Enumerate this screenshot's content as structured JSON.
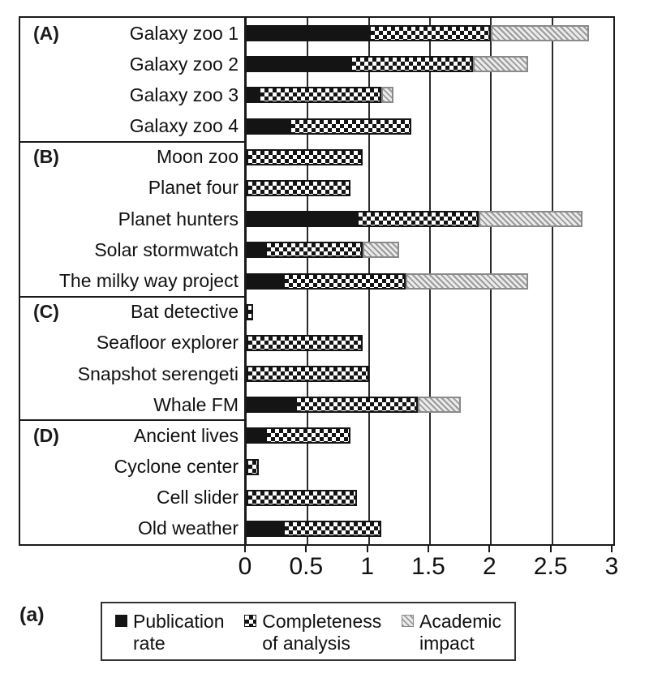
{
  "figure_label": "(a)",
  "colors": {
    "ink": "#1a1a1a",
    "solid_fill": "#141414",
    "checker_dark": "#141414",
    "checker_light": "#ffffff",
    "hatch_line": "#9a9a9a",
    "hatch_bg": "#ebebeb"
  },
  "legend": {
    "items": [
      {
        "name": "Publication rate",
        "pattern": "solid",
        "lines": [
          "Publication",
          "rate"
        ]
      },
      {
        "name": "Completeness of analysis",
        "pattern": "checker",
        "lines": [
          "Completeness",
          "of analysis"
        ]
      },
      {
        "name": "Academic impact",
        "pattern": "hatch",
        "lines": [
          "Academic",
          "impact"
        ]
      }
    ]
  },
  "chart_data": {
    "type": "bar",
    "orientation": "horizontal-stacked",
    "title": "",
    "xlabel": "",
    "ylabel": "",
    "xlim": [
      0,
      3
    ],
    "xticks": [
      0,
      0.5,
      1,
      1.5,
      2,
      2.5,
      3
    ],
    "xtick_labels": [
      "0",
      "0.5",
      "1",
      "1.5",
      "2",
      "2.5",
      "3"
    ],
    "grid": "vertical",
    "legend_position": "bottom",
    "series_names": [
      "Publication rate",
      "Completeness of analysis",
      "Academic impact"
    ],
    "series_patterns": [
      "solid",
      "checker",
      "hatch"
    ],
    "groups": [
      {
        "label": "(A)",
        "rows": [
          {
            "name": "Galaxy zoo 1",
            "values": [
              1.0,
              1.0,
              0.8
            ]
          },
          {
            "name": "Galaxy zoo 2",
            "values": [
              0.85,
              1.0,
              0.45
            ]
          },
          {
            "name": "Galaxy zoo 3",
            "values": [
              0.1,
              1.0,
              0.1
            ]
          },
          {
            "name": "Galaxy zoo 4",
            "values": [
              0.35,
              1.0,
              0
            ]
          }
        ]
      },
      {
        "label": "(B)",
        "rows": [
          {
            "name": "Moon zoo",
            "values": [
              0,
              0.95,
              0
            ]
          },
          {
            "name": "Planet four",
            "values": [
              0,
              0.85,
              0
            ]
          },
          {
            "name": "Planet hunters",
            "values": [
              0.9,
              1.0,
              0.85
            ]
          },
          {
            "name": "Solar stormwatch",
            "values": [
              0.15,
              0.8,
              0.3
            ]
          },
          {
            "name": "The milky way project",
            "values": [
              0.3,
              1.0,
              1.0
            ]
          }
        ]
      },
      {
        "label": "(C)",
        "rows": [
          {
            "name": "Bat detective",
            "values": [
              0,
              0.05,
              0
            ]
          },
          {
            "name": "Seafloor explorer",
            "values": [
              0,
              0.95,
              0
            ]
          },
          {
            "name": "Snapshot serengeti",
            "values": [
              0,
              1.0,
              0
            ]
          },
          {
            "name": "Whale FM",
            "values": [
              0.4,
              1.0,
              0.35
            ]
          }
        ]
      },
      {
        "label": "(D)",
        "rows": [
          {
            "name": "Ancient lives",
            "values": [
              0.15,
              0.7,
              0
            ]
          },
          {
            "name": "Cyclone center",
            "values": [
              0,
              0.1,
              0
            ]
          },
          {
            "name": "Cell slider",
            "values": [
              0,
              0.9,
              0
            ]
          },
          {
            "name": "Old weather",
            "values": [
              0.3,
              0.8,
              0
            ]
          }
        ]
      }
    ]
  }
}
